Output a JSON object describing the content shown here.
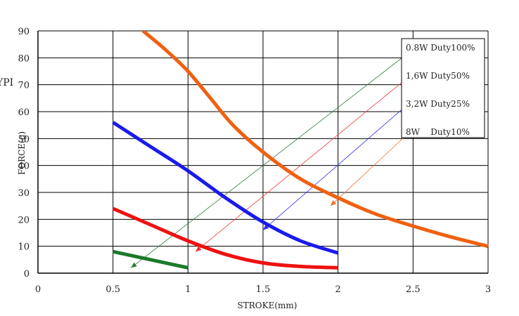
{
  "chart_data": {
    "type": "line",
    "xlabel": "STROKE(mm)",
    "ylabel": "FORCE(g)",
    "clipped_label": "YPI",
    "xlim": [
      0,
      3
    ],
    "ylim": [
      0,
      90
    ],
    "x_ticks": [
      "0",
      "0.5",
      "1",
      "1.5",
      "2",
      "2.5",
      "3"
    ],
    "y_ticks": [
      "0",
      "10",
      "20",
      "30",
      "40",
      "50",
      "60",
      "70",
      "80",
      "90"
    ],
    "grid": true,
    "legend_position": "top-right",
    "series": [
      {
        "name": "0.8W Duty100%",
        "color": "#1a7a2a",
        "x": [
          0.5,
          1.0
        ],
        "y": [
          8,
          2
        ],
        "pointer_color": "#2f7a3a",
        "pointer_from": [
          2.45,
          81
        ],
        "pointer_to": [
          0.62,
          2
        ]
      },
      {
        "name": "1,6W Duty50%",
        "color": "#ee1111",
        "x": [
          0.5,
          0.75,
          1.0,
          1.25,
          1.5,
          1.75,
          2.0
        ],
        "y": [
          24,
          18,
          12,
          7,
          3.8,
          2.5,
          2
        ],
        "pointer_color": "#ee3333",
        "pointer_from": [
          2.45,
          72
        ],
        "pointer_to": [
          1.05,
          8
        ]
      },
      {
        "name": "3,2W Duty25%",
        "color": "#1a1aee",
        "x": [
          0.5,
          0.75,
          1.0,
          1.25,
          1.5,
          1.75,
          2.0
        ],
        "y": [
          56,
          47,
          38,
          28,
          19,
          12,
          7.5
        ],
        "pointer_color": "#3333ee",
        "pointer_from": [
          2.45,
          62
        ],
        "pointer_to": [
          1.5,
          16
        ]
      },
      {
        "name": "8W    Duty10%",
        "color": "#f06010",
        "x": [
          0.7,
          0.85,
          1.0,
          1.15,
          1.3,
          1.5,
          1.75,
          2.0,
          2.25,
          2.5,
          2.75,
          3.0
        ],
        "y": [
          90,
          83,
          75,
          65,
          55,
          45,
          35,
          28,
          22,
          17.5,
          13.5,
          10
        ],
        "pointer_color": "#f07030",
        "pointer_from": [
          2.45,
          51
        ],
        "pointer_to": [
          1.95,
          25
        ]
      }
    ]
  }
}
